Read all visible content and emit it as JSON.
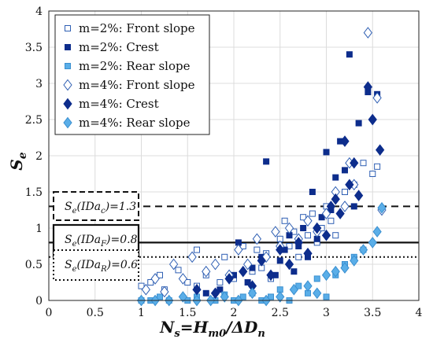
{
  "chart_data": {
    "type": "scatter",
    "xlabel": {
      "main": "N",
      "sub": "s",
      "eq": "=H",
      "sub2": "m0",
      "tail": "/ΔD",
      "sub3": "n"
    },
    "ylabel": {
      "main": "S",
      "sub": "e"
    },
    "xlim": [
      0,
      4
    ],
    "ylim": [
      0,
      4
    ],
    "xticks": [
      "0",
      "0.5",
      "1",
      "1.5",
      "2",
      "2.5",
      "3",
      "3.5",
      "4"
    ],
    "yticks": [
      "0",
      "0.5",
      "1",
      "1.5",
      "2",
      "2.5",
      "3",
      "3.5",
      "4"
    ],
    "grid": true,
    "legend_position": "top-left",
    "thresholds": [
      {
        "name": "S_e(IDa_c)=1.3",
        "y": 1.3,
        "style": "dashed"
      },
      {
        "name": "S_e(IDa_F)=0.8",
        "y": 0.8,
        "style": "solid"
      },
      {
        "name": "S_e(IDa_R)=0.6",
        "y": 0.6,
        "style": "dotted"
      }
    ],
    "threshold_labels": [
      {
        "pre": "S",
        "sub": "e",
        "mid": "(IDa",
        "sub2": "c",
        "post": ")=1.3"
      },
      {
        "pre": "S",
        "sub": "e",
        "mid": "(IDa",
        "sub2": "F",
        "post": ")=0.8"
      },
      {
        "pre": "S",
        "sub": "e",
        "mid": "(IDa",
        "sub2": "R",
        "post": ")=0.6"
      }
    ],
    "series": [
      {
        "name": "m=2%: Front slope",
        "marker": "square-open",
        "color": "#2f5fb3",
        "points": [
          [
            1.0,
            0.2
          ],
          [
            1.1,
            0.25
          ],
          [
            1.2,
            0.35
          ],
          [
            1.25,
            0.15
          ],
          [
            1.4,
            0.42
          ],
          [
            1.5,
            0.25
          ],
          [
            1.6,
            0.2
          ],
          [
            1.6,
            0.7
          ],
          [
            1.7,
            0.35
          ],
          [
            1.85,
            0.25
          ],
          [
            1.9,
            0.6
          ],
          [
            2.0,
            0.3
          ],
          [
            2.1,
            0.75
          ],
          [
            2.2,
            0.4
          ],
          [
            2.25,
            0.7
          ],
          [
            2.3,
            0.45
          ],
          [
            2.35,
            0.65
          ],
          [
            2.4,
            0.3
          ],
          [
            2.5,
            0.85
          ],
          [
            2.55,
            1.1
          ],
          [
            2.6,
            0.75
          ],
          [
            2.65,
            0.95
          ],
          [
            2.7,
            0.6
          ],
          [
            2.75,
            1.15
          ],
          [
            2.8,
            0.9
          ],
          [
            2.85,
            1.2
          ],
          [
            2.9,
            0.8
          ],
          [
            2.95,
            1.0
          ],
          [
            3.0,
            1.3
          ],
          [
            3.05,
            1.1
          ],
          [
            3.1,
            0.9
          ],
          [
            3.2,
            1.5
          ],
          [
            3.3,
            1.6
          ],
          [
            3.4,
            1.9
          ],
          [
            3.5,
            1.75
          ],
          [
            3.55,
            1.85
          ]
        ]
      },
      {
        "name": "m=2%: Crest",
        "marker": "square-filled",
        "color": "#0d2d8c",
        "points": [
          [
            1.7,
            0.1
          ],
          [
            1.85,
            0.15
          ],
          [
            2.0,
            0.35
          ],
          [
            2.05,
            0.8
          ],
          [
            2.15,
            0.25
          ],
          [
            2.2,
            0.45
          ],
          [
            2.3,
            0.6
          ],
          [
            2.35,
            1.92
          ],
          [
            2.45,
            0.35
          ],
          [
            2.5,
            0.55
          ],
          [
            2.55,
            0.7
          ],
          [
            2.6,
            0.9
          ],
          [
            2.65,
            0.4
          ],
          [
            2.7,
            0.75
          ],
          [
            2.75,
            1.0
          ],
          [
            2.8,
            0.6
          ],
          [
            2.85,
            1.5
          ],
          [
            2.9,
            0.85
          ],
          [
            2.95,
            1.15
          ],
          [
            3.0,
            2.05
          ],
          [
            3.05,
            1.25
          ],
          [
            3.1,
            1.7
          ],
          [
            3.15,
            2.2
          ],
          [
            3.2,
            1.8
          ],
          [
            3.25,
            3.4
          ],
          [
            3.3,
            1.3
          ],
          [
            3.35,
            2.45
          ],
          [
            3.45,
            2.88
          ],
          [
            3.55,
            2.85
          ]
        ]
      },
      {
        "name": "m=2%: Rear slope",
        "marker": "square-filled",
        "color": "#5aaee8",
        "points": [
          [
            1.0,
            0.0
          ],
          [
            1.1,
            0.0
          ],
          [
            1.2,
            0.05
          ],
          [
            1.3,
            0.0
          ],
          [
            1.5,
            0.0
          ],
          [
            1.6,
            0.05
          ],
          [
            1.8,
            0.0
          ],
          [
            1.9,
            0.08
          ],
          [
            2.0,
            0.0
          ],
          [
            2.1,
            0.05
          ],
          [
            2.2,
            0.1
          ],
          [
            2.3,
            0.0
          ],
          [
            2.4,
            0.05
          ],
          [
            2.5,
            0.15
          ],
          [
            2.6,
            0.0
          ],
          [
            2.7,
            0.2
          ],
          [
            2.8,
            0.1
          ],
          [
            2.9,
            0.3
          ],
          [
            3.0,
            0.05
          ],
          [
            3.1,
            0.35
          ],
          [
            3.2,
            0.5
          ],
          [
            3.3,
            0.6
          ],
          [
            3.4,
            0.7
          ]
        ]
      },
      {
        "name": "m=4%: Front slope",
        "marker": "diamond-open",
        "color": "#2f5fb3",
        "points": [
          [
            1.05,
            0.15
          ],
          [
            1.15,
            0.3
          ],
          [
            1.25,
            0.12
          ],
          [
            1.35,
            0.5
          ],
          [
            1.45,
            0.3
          ],
          [
            1.55,
            0.6
          ],
          [
            1.7,
            0.4
          ],
          [
            1.8,
            0.5
          ],
          [
            1.95,
            0.35
          ],
          [
            2.05,
            0.7
          ],
          [
            2.15,
            0.5
          ],
          [
            2.25,
            0.85
          ],
          [
            2.35,
            0.6
          ],
          [
            2.45,
            0.95
          ],
          [
            2.5,
            0.75
          ],
          [
            2.6,
            1.0
          ],
          [
            2.7,
            0.85
          ],
          [
            2.8,
            1.1
          ],
          [
            2.9,
            0.95
          ],
          [
            3.0,
            1.2
          ],
          [
            3.1,
            1.5
          ],
          [
            3.2,
            1.3
          ],
          [
            3.25,
            1.9
          ],
          [
            3.3,
            1.6
          ],
          [
            3.45,
            3.7
          ],
          [
            3.55,
            2.8
          ],
          [
            3.6,
            1.25
          ]
        ]
      },
      {
        "name": "m=4%: Crest",
        "marker": "diamond-filled",
        "color": "#0d2d8c",
        "points": [
          [
            1.6,
            0.15
          ],
          [
            1.8,
            0.1
          ],
          [
            1.95,
            0.3
          ],
          [
            2.1,
            0.4
          ],
          [
            2.2,
            0.2
          ],
          [
            2.3,
            0.55
          ],
          [
            2.4,
            0.35
          ],
          [
            2.5,
            0.7
          ],
          [
            2.6,
            0.5
          ],
          [
            2.7,
            0.8
          ],
          [
            2.8,
            0.65
          ],
          [
            2.9,
            1.0
          ],
          [
            3.0,
            0.9
          ],
          [
            3.05,
            1.3
          ],
          [
            3.1,
            1.4
          ],
          [
            3.15,
            1.2
          ],
          [
            3.2,
            2.2
          ],
          [
            3.25,
            1.6
          ],
          [
            3.3,
            1.9
          ],
          [
            3.35,
            1.45
          ],
          [
            3.45,
            2.95
          ],
          [
            3.5,
            2.5
          ],
          [
            3.58,
            2.08
          ]
        ]
      },
      {
        "name": "m=4%: Rear slope",
        "marker": "diamond-filled",
        "color": "#5aaee8",
        "points": [
          [
            1.0,
            0.0
          ],
          [
            1.15,
            0.0
          ],
          [
            1.3,
            0.0
          ],
          [
            1.45,
            0.05
          ],
          [
            1.6,
            0.0
          ],
          [
            1.75,
            0.0
          ],
          [
            1.9,
            0.05
          ],
          [
            2.05,
            0.0
          ],
          [
            2.2,
            0.1
          ],
          [
            2.35,
            0.0
          ],
          [
            2.5,
            0.05
          ],
          [
            2.65,
            0.15
          ],
          [
            2.8,
            0.2
          ],
          [
            2.9,
            0.1
          ],
          [
            3.0,
            0.35
          ],
          [
            3.1,
            0.4
          ],
          [
            3.2,
            0.45
          ],
          [
            3.3,
            0.55
          ],
          [
            3.4,
            0.7
          ],
          [
            3.5,
            0.8
          ],
          [
            3.55,
            0.95
          ],
          [
            3.6,
            1.28
          ]
        ]
      }
    ]
  }
}
